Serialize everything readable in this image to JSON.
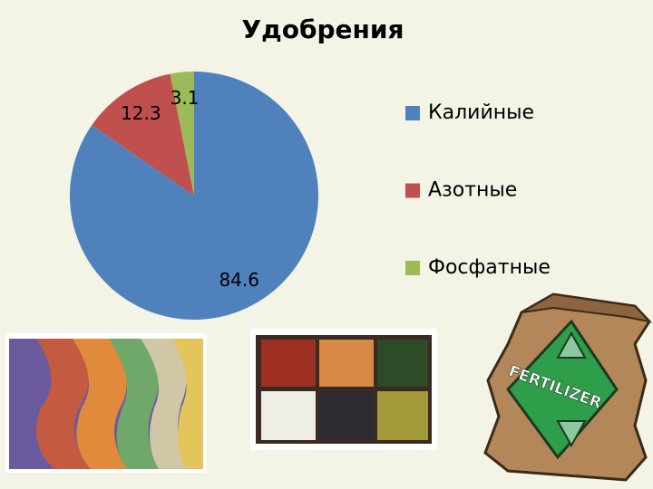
{
  "chart_data": {
    "type": "pie",
    "title": "Удобрения",
    "categories": [
      "Калийные",
      "Азотные",
      "Фосфатные"
    ],
    "values": [
      84.6,
      12.3,
      3.1
    ],
    "colors": [
      "#4f81bd",
      "#c0504d",
      "#9bbb59"
    ],
    "legend": "right"
  },
  "illustration": {
    "label": "FERTILIZER"
  }
}
